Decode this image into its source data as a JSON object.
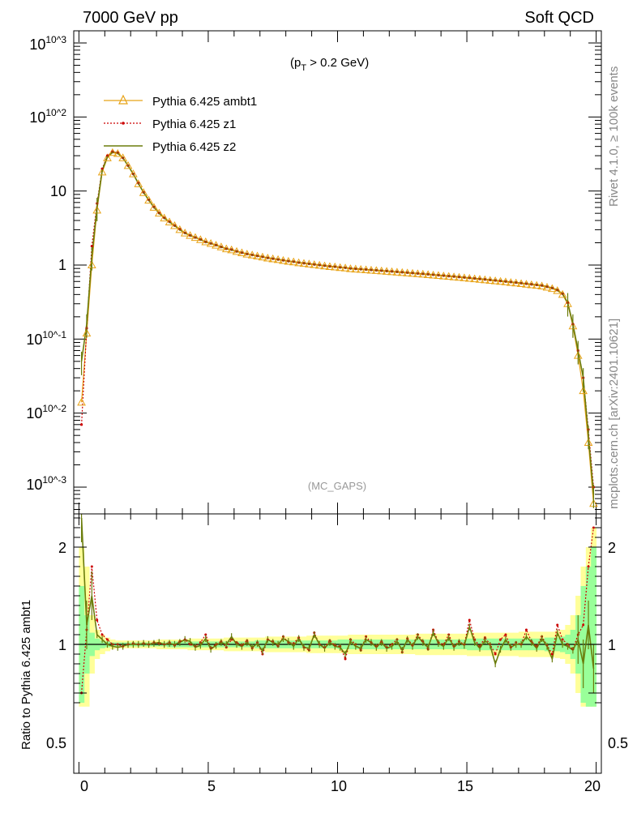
{
  "header": {
    "left": "7000 GeV pp",
    "right": "Soft QCD"
  },
  "cut_label": "(p",
  "cut_sub": "T",
  "cut_rest": " > 0.2 GeV)",
  "analysis_label": "(MC_GAPS)",
  "side_text_top": "Rivet 4.1.0, ≥ 100k events",
  "side_text_bottom": "mcplots.cern.ch [arXiv:2401.10621]",
  "colors": {
    "ambt1": "#e8a317",
    "z1": "#cc0000",
    "z2": "#6b7d0c",
    "band_yellow": "#ffff99",
    "band_green": "#99ff99"
  },
  "chart_data": [
    {
      "type": "line",
      "panel": "main",
      "yscale": "log",
      "xlim": [
        -0.2,
        20.2
      ],
      "ylim": [
        0.0004,
        1500
      ],
      "y_tick_labels": [
        "10^-3",
        "10^-2",
        "10^-1",
        "1",
        "10",
        "10^2",
        "10^3"
      ],
      "legend": [
        "Pythia 6.425 ambt1",
        "Pythia 6.425 z1",
        "Pythia 6.425 z2"
      ],
      "x": [
        0.1,
        0.3,
        0.5,
        0.7,
        0.9,
        1.1,
        1.3,
        1.5,
        1.7,
        1.9,
        2.1,
        2.3,
        2.5,
        2.7,
        2.9,
        3.1,
        3.3,
        3.5,
        3.7,
        3.9,
        4.1,
        4.3,
        4.5,
        4.7,
        4.9,
        5.1,
        5.3,
        5.5,
        5.7,
        5.9,
        6.1,
        6.3,
        6.5,
        6.7,
        6.9,
        7.1,
        7.3,
        7.5,
        7.7,
        7.9,
        8.1,
        8.3,
        8.5,
        8.7,
        8.9,
        9.1,
        9.3,
        9.5,
        9.7,
        9.9,
        10.1,
        10.3,
        10.5,
        10.7,
        10.9,
        11.1,
        11.3,
        11.5,
        11.7,
        11.9,
        12.1,
        12.3,
        12.5,
        12.7,
        12.9,
        13.1,
        13.3,
        13.5,
        13.7,
        13.9,
        14.1,
        14.3,
        14.5,
        14.7,
        14.9,
        15.1,
        15.3,
        15.5,
        15.7,
        15.9,
        16.1,
        16.3,
        16.5,
        16.7,
        16.9,
        17.1,
        17.3,
        17.5,
        17.7,
        17.9,
        18.1,
        18.3,
        18.5,
        18.7,
        18.9,
        19.1,
        19.3,
        19.5,
        19.7,
        19.9
      ],
      "series": [
        {
          "name": "Pythia 6.425 ambt1",
          "values": [
            0.014,
            0.12,
            1.0,
            5.5,
            18,
            28,
            33,
            32,
            28,
            22,
            17,
            12.5,
            9.5,
            7.5,
            6.0,
            5.0,
            4.3,
            3.8,
            3.4,
            3.0,
            2.7,
            2.5,
            2.35,
            2.2,
            2.05,
            1.95,
            1.85,
            1.75,
            1.65,
            1.6,
            1.52,
            1.46,
            1.4,
            1.36,
            1.32,
            1.28,
            1.24,
            1.21,
            1.18,
            1.15,
            1.12,
            1.1,
            1.07,
            1.05,
            1.03,
            1.01,
            0.99,
            0.97,
            0.95,
            0.94,
            0.92,
            0.91,
            0.89,
            0.88,
            0.87,
            0.86,
            0.85,
            0.84,
            0.83,
            0.82,
            0.81,
            0.8,
            0.79,
            0.78,
            0.77,
            0.76,
            0.75,
            0.74,
            0.73,
            0.72,
            0.71,
            0.7,
            0.69,
            0.68,
            0.67,
            0.66,
            0.65,
            0.64,
            0.63,
            0.62,
            0.61,
            0.6,
            0.59,
            0.58,
            0.57,
            0.56,
            0.55,
            0.54,
            0.53,
            0.52,
            0.5,
            0.48,
            0.45,
            0.4,
            0.3,
            0.15,
            0.06,
            0.02,
            0.004,
            0.0006
          ]
        },
        {
          "name": "Pythia 6.425 z1",
          "values": [
            0.007,
            0.14,
            1.8,
            6.8,
            20,
            30,
            34,
            33,
            28,
            22,
            17,
            12.8,
            9.6,
            7.6,
            6.1,
            5.05,
            4.35,
            3.85,
            3.42,
            3.05,
            2.72,
            2.52,
            2.36,
            2.22,
            2.06,
            1.96,
            1.86,
            1.76,
            1.66,
            1.62,
            1.53,
            1.47,
            1.41,
            1.37,
            1.33,
            1.29,
            1.25,
            1.22,
            1.19,
            1.16,
            1.13,
            1.11,
            1.08,
            1.06,
            1.04,
            1.02,
            1.0,
            0.98,
            0.96,
            0.95,
            0.93,
            0.92,
            0.9,
            0.89,
            0.88,
            0.87,
            0.86,
            0.85,
            0.84,
            0.83,
            0.82,
            0.81,
            0.8,
            0.79,
            0.78,
            0.77,
            0.76,
            0.75,
            0.74,
            0.73,
            0.72,
            0.71,
            0.7,
            0.69,
            0.68,
            0.67,
            0.66,
            0.65,
            0.64,
            0.63,
            0.62,
            0.61,
            0.6,
            0.59,
            0.58,
            0.57,
            0.56,
            0.55,
            0.54,
            0.53,
            0.51,
            0.49,
            0.46,
            0.41,
            0.31,
            0.16,
            0.07,
            0.03,
            0.006,
            0.001
          ]
        },
        {
          "name": "Pythia 6.425 z2",
          "values": [
            0.05,
            0.16,
            1.3,
            6.0,
            19,
            29,
            33.5,
            32.5,
            28,
            22,
            17,
            12.6,
            9.55,
            7.55,
            6.05,
            5.02,
            4.32,
            3.82,
            3.41,
            3.02,
            2.71,
            2.51,
            2.36,
            2.21,
            2.05,
            1.96,
            1.86,
            1.76,
            1.66,
            1.61,
            1.53,
            1.47,
            1.41,
            1.37,
            1.33,
            1.29,
            1.25,
            1.22,
            1.19,
            1.16,
            1.13,
            1.11,
            1.08,
            1.06,
            1.04,
            1.02,
            1.0,
            0.98,
            0.96,
            0.95,
            0.93,
            0.92,
            0.9,
            0.89,
            0.88,
            0.87,
            0.86,
            0.85,
            0.84,
            0.83,
            0.82,
            0.81,
            0.8,
            0.79,
            0.78,
            0.77,
            0.76,
            0.75,
            0.74,
            0.73,
            0.72,
            0.71,
            0.7,
            0.69,
            0.68,
            0.67,
            0.66,
            0.65,
            0.64,
            0.63,
            0.62,
            0.61,
            0.6,
            0.59,
            0.58,
            0.57,
            0.56,
            0.55,
            0.54,
            0.53,
            0.51,
            0.49,
            0.46,
            0.41,
            0.31,
            0.16,
            0.07,
            0.03,
            0.005,
            0.0008
          ]
        }
      ]
    },
    {
      "type": "line",
      "panel": "ratio",
      "ylabel": "Ratio to Pythia 6.425 ambt1",
      "xlim": [
        -0.2,
        20.2
      ],
      "ylim": [
        0.35,
        2.4
      ],
      "y_ticks": [
        0.5,
        1,
        2
      ],
      "y_tick_labels": [
        "0.5",
        "1",
        "2"
      ],
      "x_ticks": [
        0,
        5,
        10,
        15,
        20
      ],
      "x_tick_labels": [
        "0",
        "5",
        "10",
        "15",
        "20"
      ],
      "x": [
        0.1,
        0.3,
        0.5,
        0.7,
        0.9,
        1.1,
        1.3,
        1.5,
        1.7,
        1.9,
        2.1,
        2.3,
        2.5,
        2.7,
        2.9,
        3.1,
        3.3,
        3.5,
        3.7,
        3.9,
        4.1,
        4.3,
        4.5,
        4.7,
        4.9,
        5.1,
        5.3,
        5.5,
        5.7,
        5.9,
        6.1,
        6.3,
        6.5,
        6.7,
        6.9,
        7.1,
        7.3,
        7.5,
        7.7,
        7.9,
        8.1,
        8.3,
        8.5,
        8.7,
        8.9,
        9.1,
        9.3,
        9.5,
        9.7,
        9.9,
        10.1,
        10.3,
        10.5,
        10.7,
        10.9,
        11.1,
        11.3,
        11.5,
        11.7,
        11.9,
        12.1,
        12.3,
        12.5,
        12.7,
        12.9,
        13.1,
        13.3,
        13.5,
        13.7,
        13.9,
        14.1,
        14.3,
        14.5,
        14.7,
        14.9,
        15.1,
        15.3,
        15.5,
        15.7,
        15.9,
        16.1,
        16.3,
        16.5,
        16.7,
        16.9,
        17.1,
        17.3,
        17.5,
        17.7,
        17.9,
        18.1,
        18.3,
        18.5,
        18.7,
        18.9,
        19.1,
        19.3,
        19.5,
        19.7,
        19.9
      ],
      "band_yellow_halfwidth": [
        1.0,
        0.8,
        0.3,
        0.15,
        0.1,
        0.07,
        0.05,
        0.04,
        0.04,
        0.04,
        0.04,
        0.04,
        0.04,
        0.04,
        0.04,
        0.05,
        0.05,
        0.05,
        0.05,
        0.05,
        0.05,
        0.06,
        0.06,
        0.06,
        0.06,
        0.06,
        0.06,
        0.06,
        0.07,
        0.07,
        0.07,
        0.07,
        0.07,
        0.07,
        0.07,
        0.07,
        0.08,
        0.08,
        0.08,
        0.08,
        0.08,
        0.08,
        0.08,
        0.08,
        0.09,
        0.09,
        0.09,
        0.09,
        0.09,
        0.09,
        0.09,
        0.09,
        0.1,
        0.1,
        0.1,
        0.1,
        0.1,
        0.1,
        0.1,
        0.1,
        0.1,
        0.1,
        0.1,
        0.1,
        0.1,
        0.11,
        0.11,
        0.11,
        0.11,
        0.11,
        0.11,
        0.11,
        0.11,
        0.11,
        0.11,
        0.12,
        0.12,
        0.12,
        0.12,
        0.12,
        0.12,
        0.12,
        0.12,
        0.12,
        0.12,
        0.13,
        0.13,
        0.13,
        0.13,
        0.13,
        0.13,
        0.13,
        0.14,
        0.15,
        0.2,
        0.3,
        0.5,
        0.8,
        1.0,
        1.2
      ],
      "band_green_halfwidth": [
        0.6,
        0.3,
        0.12,
        0.06,
        0.04,
        0.03,
        0.02,
        0.02,
        0.02,
        0.02,
        0.02,
        0.02,
        0.02,
        0.02,
        0.02,
        0.02,
        0.02,
        0.03,
        0.03,
        0.03,
        0.03,
        0.03,
        0.03,
        0.03,
        0.03,
        0.03,
        0.03,
        0.03,
        0.03,
        0.03,
        0.03,
        0.03,
        0.03,
        0.03,
        0.04,
        0.04,
        0.04,
        0.04,
        0.04,
        0.04,
        0.04,
        0.04,
        0.04,
        0.04,
        0.04,
        0.04,
        0.04,
        0.04,
        0.04,
        0.04,
        0.05,
        0.05,
        0.05,
        0.05,
        0.05,
        0.05,
        0.05,
        0.05,
        0.05,
        0.05,
        0.05,
        0.05,
        0.05,
        0.05,
        0.05,
        0.05,
        0.05,
        0.05,
        0.05,
        0.05,
        0.05,
        0.05,
        0.05,
        0.05,
        0.05,
        0.06,
        0.06,
        0.06,
        0.06,
        0.06,
        0.06,
        0.06,
        0.06,
        0.06,
        0.06,
        0.06,
        0.06,
        0.06,
        0.06,
        0.06,
        0.07,
        0.07,
        0.07,
        0.08,
        0.1,
        0.15,
        0.3,
        0.6,
        0.8,
        1.0
      ],
      "series": [
        {
          "name": "Pythia 6.425 z1",
          "values": [
            0.5,
            1.15,
            1.8,
            1.25,
            1.1,
            1.05,
            1.0,
            1.0,
            0.98,
            1.0,
            1.01,
            1.0,
            1.01,
            1.0,
            1.02,
            1.01,
            1.0,
            1.02,
            0.99,
            1.03,
            1.05,
            1.0,
            0.98,
            1.02,
            1.1,
            0.96,
            1.0,
            1.03,
            0.97,
            1.05,
            1.02,
            0.99,
            1.04,
            0.96,
            1.02,
            0.9,
            1.05,
            1.03,
            0.98,
            1.08,
            1.02,
            1.01,
            1.07,
            0.97,
            0.94,
            1.12,
            1.0,
            0.97,
            1.04,
            0.99,
            0.98,
            0.85,
            1.05,
            1.0,
            0.94,
            1.08,
            1.02,
            0.98,
            1.03,
            0.97,
            1.0,
            1.05,
            0.92,
            1.06,
            0.99,
            1.1,
            1.03,
            0.95,
            1.15,
            1.02,
            1.0,
            1.1,
            0.98,
            1.03,
            1.0,
            1.25,
            1.05,
            0.98,
            1.07,
            1.0,
            0.9,
            1.05,
            1.1,
            0.97,
            1.02,
            1.0,
            1.15,
            1.03,
            0.98,
            1.08,
            0.99,
            0.9,
            1.2,
            1.05,
            1.0,
            0.95,
            1.1,
            1.2,
            1.8,
            2.2
          ]
        },
        {
          "name": "Pythia 6.425 z2",
          "values": [
            2.3,
            1.2,
            1.5,
            1.1,
            1.05,
            1.0,
            0.98,
            0.97,
            0.98,
            1.0,
            1.0,
            1.0,
            1.01,
            1.0,
            1.01,
            1.02,
            1.0,
            1.01,
            1.0,
            1.02,
            1.05,
            1.03,
            0.97,
            0.99,
            1.06,
            0.95,
            0.99,
            1.02,
            1.0,
            1.08,
            1.0,
            0.98,
            1.02,
            0.97,
            1.01,
            0.93,
            1.05,
            1.02,
            1.0,
            1.06,
            1.03,
            0.98,
            1.06,
            0.97,
            0.96,
            1.1,
            1.0,
            0.96,
            1.02,
            0.98,
            0.97,
            0.9,
            1.03,
            0.98,
            0.96,
            1.05,
            1.02,
            0.97,
            1.02,
            0.96,
            0.98,
            1.03,
            0.94,
            1.05,
            0.98,
            1.08,
            1.02,
            0.97,
            1.12,
            1.01,
            0.98,
            1.07,
            0.97,
            1.02,
            0.99,
            1.18,
            1.02,
            0.96,
            1.04,
            0.99,
            0.8,
            0.95,
            1.05,
            0.97,
            1.0,
            1.0,
            1.08,
            1.02,
            0.96,
            1.06,
            0.98,
            0.85,
            1.12,
            1.0,
            0.98,
            0.94,
            1.05,
            0.8,
            1.2,
            0.75
          ]
        }
      ]
    }
  ]
}
